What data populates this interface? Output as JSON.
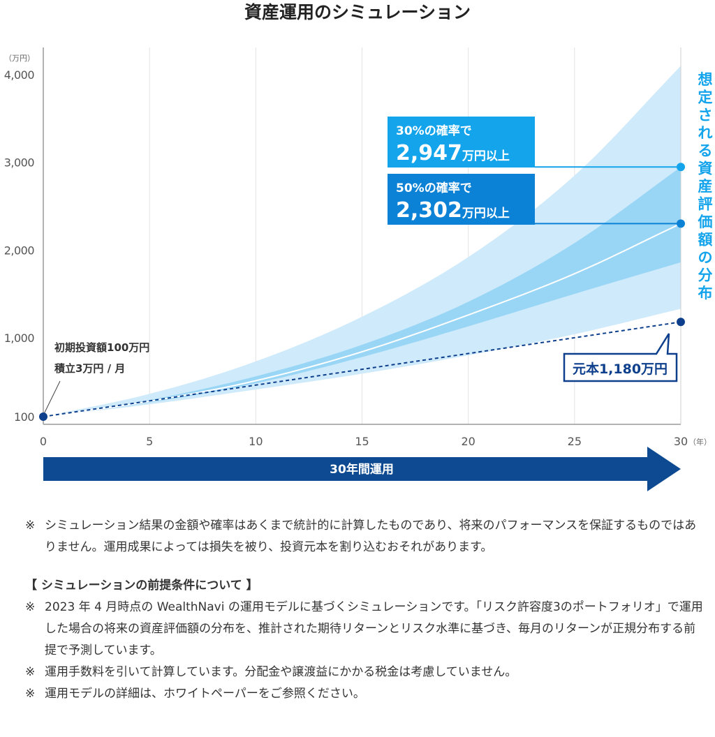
{
  "title": "資産運用のシミュレーション",
  "chart_data": {
    "type": "area",
    "title": "資産運用のシミュレーション",
    "y_unit": "（万円）",
    "x_unit": "（年）",
    "ylim": [
      100,
      4200
    ],
    "xlim": [
      0,
      30
    ],
    "y_ticks": [
      {
        "value": 100,
        "label": "100"
      },
      {
        "value": 1000,
        "label": "1,000"
      },
      {
        "value": 2000,
        "label": "2,000"
      },
      {
        "value": 3000,
        "label": "3,000"
      },
      {
        "value": 4000,
        "label": "4,000"
      }
    ],
    "x_ticks": [
      {
        "value": 0,
        "label": "0"
      },
      {
        "value": 5,
        "label": "5"
      },
      {
        "value": 10,
        "label": "10"
      },
      {
        "value": 15,
        "label": "15"
      },
      {
        "value": 20,
        "label": "20"
      },
      {
        "value": 25,
        "label": "25"
      },
      {
        "value": 30,
        "label": "30"
      }
    ],
    "grid": "vertical",
    "bands": [
      {
        "kind": "outer",
        "color": "#cfeafa",
        "upper": [
          [
            0,
            100
          ],
          [
            5,
            360
          ],
          [
            10,
            730
          ],
          [
            15,
            1240
          ],
          [
            20,
            1920
          ],
          [
            25,
            2850
          ],
          [
            30,
            4100
          ]
        ],
        "lower": [
          [
            0,
            100
          ],
          [
            5,
            240
          ],
          [
            10,
            410
          ],
          [
            15,
            590
          ],
          [
            20,
            800
          ],
          [
            25,
            1040
          ],
          [
            30,
            1330
          ]
        ]
      },
      {
        "kind": "inner",
        "color": "#99d6f6",
        "upper": [
          [
            0,
            100
          ],
          [
            5,
            290
          ],
          [
            10,
            560
          ],
          [
            15,
            920
          ],
          [
            20,
            1410
          ],
          [
            25,
            2080
          ],
          [
            30,
            2947
          ]
        ],
        "lower": [
          [
            0,
            100
          ],
          [
            5,
            260
          ],
          [
            10,
            480
          ],
          [
            15,
            780
          ],
          [
            20,
            1130
          ],
          [
            25,
            1500
          ],
          [
            30,
            1860
          ]
        ]
      }
    ],
    "series": [
      {
        "kind": "median",
        "color": "#ffffff",
        "points": [
          [
            0,
            100
          ],
          [
            5,
            275
          ],
          [
            10,
            510
          ],
          [
            15,
            840
          ],
          [
            20,
            1260
          ],
          [
            25,
            1730
          ],
          [
            30,
            2302
          ]
        ]
      },
      {
        "kind": "principal",
        "color": "#0d3f8c",
        "points": [
          [
            0,
            100
          ],
          [
            30,
            1180
          ]
        ]
      }
    ],
    "callouts": [
      {
        "prob_text": "30%の確率で",
        "amount": "2,947",
        "unit": "万円以上",
        "value": 2947,
        "color": "#13a4ec"
      },
      {
        "prob_text": "50%の確率で",
        "amount": "2,302",
        "unit": "万円以上",
        "value": 2302,
        "color": "#0c82d6"
      }
    ],
    "principal_label": "元本1,180万円",
    "principal_value": 1180,
    "start_note": [
      "初期投資額100万円",
      "積立3万円 / 月"
    ],
    "distribution_label": "想定される資産評価額の分布",
    "period_label": "30年間運用"
  },
  "notes": {
    "disclaimer": "シミュレーション結果の金額や確率はあくまで統計的に計算したものであり、将来のパフォーマンスを保証するものではありません。運用成果によっては損失を被り、投資元本を割り込むおそれがあります。",
    "section_title": "【 シミュレーションの前提条件について 】",
    "items": [
      "2023 年 4 月時点の WealthNavi の運用モデルに基づくシミュレーションです。「リスク許容度3のポートフォリオ」で運用した場合の将来の資産評価額の分布を、推計された期待リターンとリスク水準に基づき、毎月のリターンが正規分布する前提で予測しています。",
      "運用手数料を引いて計算しています。分配金や譲渡益にかかる税金は考慮していません。",
      "運用モデルの詳細は、ホワイトペーパーをご参照ください。"
    ],
    "mark": "※"
  }
}
